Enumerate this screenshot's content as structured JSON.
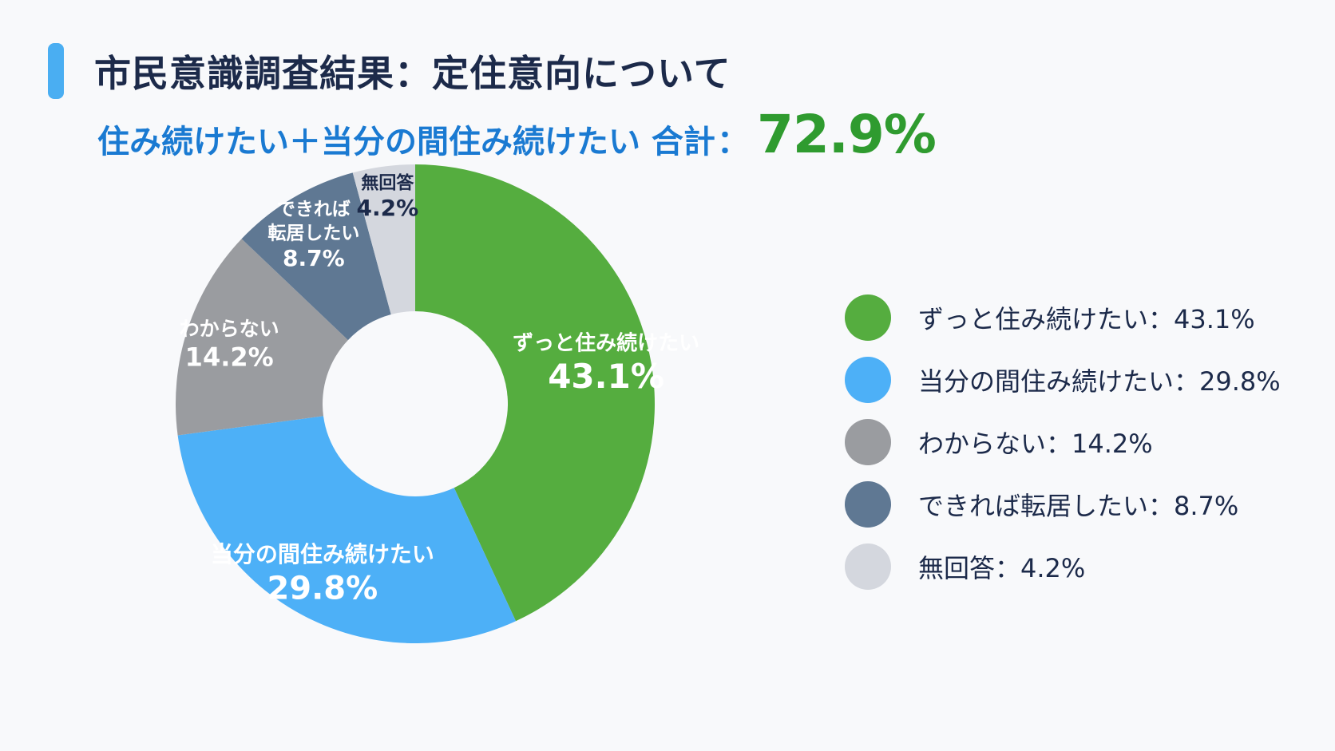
{
  "header": {
    "title": "市民意識調査結果：定住意向について",
    "subtitle_label": "住み続けたい＋当分の間住み続けたい 合計",
    "subtitle_colon": "：",
    "subtitle_total": "72.9%"
  },
  "chart_data": {
    "type": "pie",
    "categories": [
      "ずっと住み続けたい",
      "当分の間住み続けたい",
      "わからない",
      "できれば転居したい",
      "無回答"
    ],
    "values": [
      43.1,
      29.8,
      14.2,
      8.7,
      4.2
    ],
    "unit": "%",
    "colors": [
      "#55ad3f",
      "#4db0f7",
      "#9a9ca0",
      "#5f7893",
      "#d4d7de"
    ],
    "slice_labels": [
      {
        "lines": [
          "ずっと住み続けたい"
        ],
        "value": "43.1%"
      },
      {
        "lines": [
          "当分の間住み続けたい"
        ],
        "value": "29.8%"
      },
      {
        "lines": [
          "わからない"
        ],
        "value": "14.2%"
      },
      {
        "lines": [
          "できれば",
          "転居したい"
        ],
        "value": "8.7%"
      },
      {
        "lines": [
          "無回答"
        ],
        "value": "4.2%"
      }
    ],
    "legend": [
      "ずっと住み続けたい：43.1%",
      "当分の間住み続けたい：29.8%",
      "わからない：14.2%",
      "できれば転居したい：8.7%",
      "無回答：4.2%"
    ],
    "legend_placement": "right"
  }
}
